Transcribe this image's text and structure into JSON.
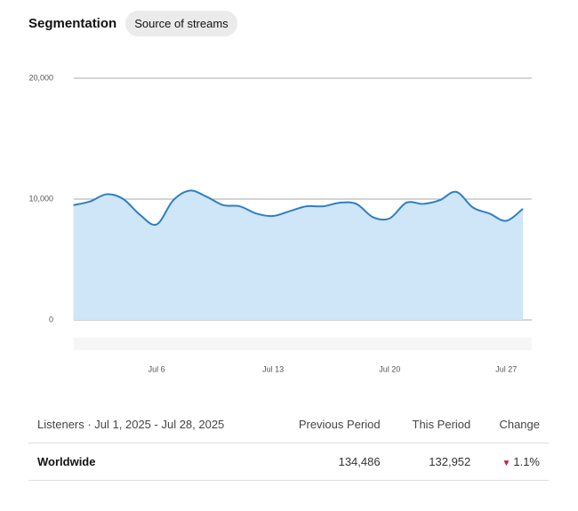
{
  "header": {
    "title": "Segmentation",
    "filter": "Source of streams"
  },
  "chart_data": {
    "type": "line",
    "categories": [
      null,
      null,
      null,
      null,
      null,
      "Jul 6",
      null,
      null,
      null,
      null,
      null,
      null,
      "Jul 13",
      null,
      null,
      null,
      null,
      null,
      null,
      "Jul 20",
      null,
      null,
      null,
      null,
      null,
      null,
      "Jul 27",
      null
    ],
    "values": [
      9500,
      9800,
      10400,
      10000,
      8700,
      7900,
      9900,
      10700,
      10200,
      9500,
      9400,
      8800,
      8600,
      9000,
      9400,
      9400,
      9700,
      9600,
      8500,
      8400,
      9700,
      9600,
      9900,
      10600,
      9300,
      8800,
      8200,
      9200
    ],
    "color": "#2f7fc1",
    "fill": "#cfe5f8",
    "ylim": [
      0,
      20000
    ],
    "yticks": [
      0,
      {
        "value": 10000,
        "label": "10,000"
      },
      {
        "value": 20000,
        "label": "20,000"
      }
    ],
    "grid": true
  },
  "table": {
    "columns": [
      "Listeners · Jul 1, 2025 - Jul 28, 2025",
      "Previous Period",
      "This Period",
      "Change"
    ],
    "rows": [
      [
        "Worldwide",
        "134,486",
        "132,952",
        "1.1%"
      ]
    ]
  }
}
